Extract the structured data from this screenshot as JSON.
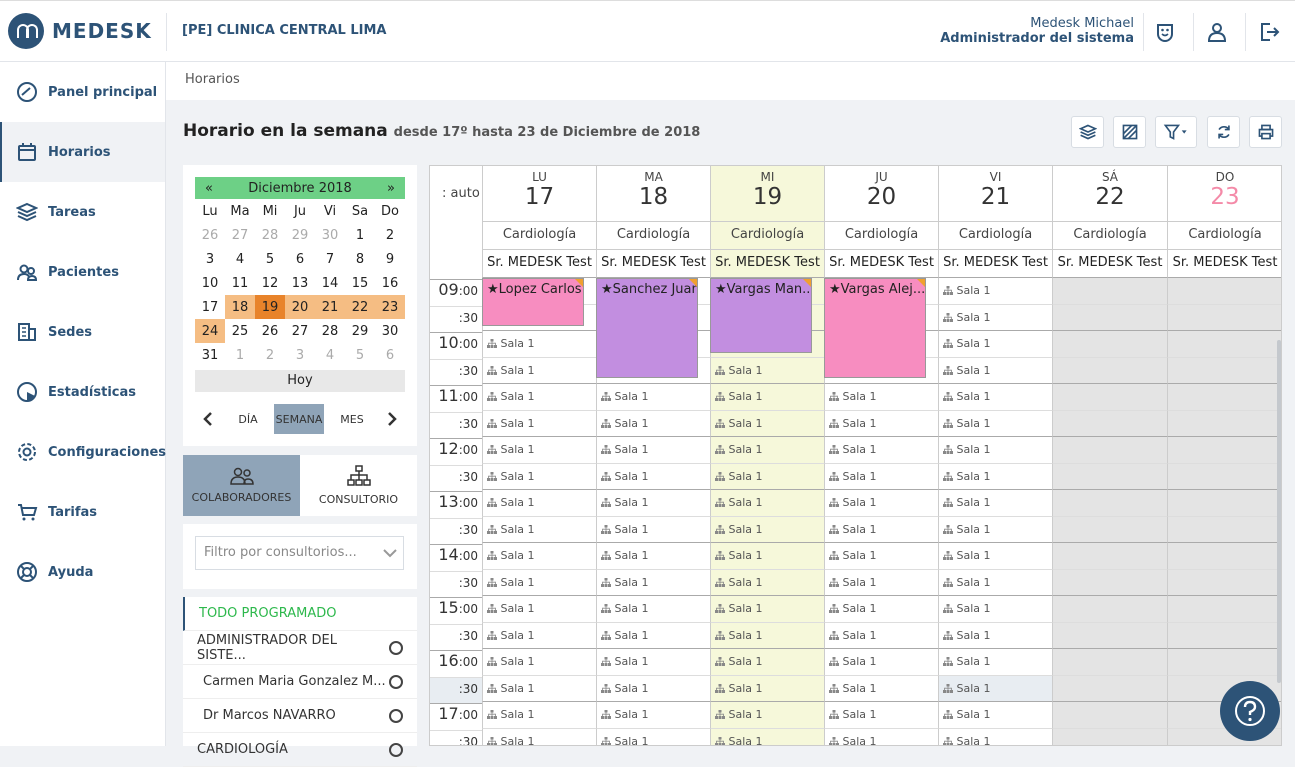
{
  "header": {
    "logo": "MEDESK",
    "clinic": "[PE] CLINICA CENTRAL LIMA",
    "user_name": "Medesk Michael",
    "user_role": "Administrador del sistema"
  },
  "sidebar": {
    "items": [
      {
        "label": "Panel principal",
        "icon": "dashboard-icon"
      },
      {
        "label": "Horarios",
        "icon": "calendar-icon"
      },
      {
        "label": "Tareas",
        "icon": "layers-icon"
      },
      {
        "label": "Pacientes",
        "icon": "people-icon"
      },
      {
        "label": "Sedes",
        "icon": "building-icon"
      },
      {
        "label": "Estadísticas",
        "icon": "pie-icon"
      },
      {
        "label": "Configuraciones",
        "icon": "gear-icon"
      },
      {
        "label": "Tarifas",
        "icon": "cart-icon"
      },
      {
        "label": "Ayuda",
        "icon": "lifebuoy-icon"
      }
    ]
  },
  "breadcrumb": "Horarios",
  "page": {
    "title": "Horario en la semana",
    "subtitle": "desde 17º hasta 23 de Diciembre de 2018"
  },
  "calendar": {
    "prev": "«",
    "month": "Diciembre 2018",
    "next": "»",
    "weekdays": [
      "Lu",
      "Ma",
      "Mi",
      "Ju",
      "Vi",
      "Sa",
      "Do"
    ],
    "weeks": [
      [
        "26",
        "27",
        "28",
        "29",
        "30",
        "1",
        "2"
      ],
      [
        "3",
        "4",
        "5",
        "6",
        "7",
        "8",
        "9"
      ],
      [
        "10",
        "11",
        "12",
        "13",
        "14",
        "15",
        "16"
      ],
      [
        "17",
        "18",
        "19",
        "20",
        "21",
        "22",
        "23"
      ],
      [
        "24",
        "25",
        "26",
        "27",
        "28",
        "29",
        "30"
      ],
      [
        "31",
        "1",
        "2",
        "3",
        "4",
        "5",
        "6"
      ]
    ],
    "today_label": "Hoy",
    "views": [
      "DÍA",
      "SEMANA",
      "MES"
    ]
  },
  "tabs": [
    "COLABORADORES",
    "CONSULTORIO"
  ],
  "filter_placeholder": "Filtro por consultorios...",
  "people": [
    "TODO PROGRAMADO",
    "ADMINISTRADOR DEL SISTE...",
    "Carmen Maria Gonzalez M...",
    "Dr Marcos NAVARRO",
    "CARDIOLOGÍA"
  ],
  "schedule": {
    "corner": ": auto",
    "days": [
      {
        "name": "LU",
        "num": "17",
        "specialty": "Cardiología",
        "doctor": "Sr. MEDESK Test"
      },
      {
        "name": "MA",
        "num": "18",
        "specialty": "Cardiología",
        "doctor": "Sr. MEDESK Test"
      },
      {
        "name": "MI",
        "num": "19",
        "specialty": "Cardiología",
        "doctor": "Sr. MEDESK Test"
      },
      {
        "name": "JU",
        "num": "20",
        "specialty": "Cardiología",
        "doctor": "Sr. MEDESK Test"
      },
      {
        "name": "VI",
        "num": "21",
        "specialty": "Cardiología",
        "doctor": "Sr. MEDESK Test"
      },
      {
        "name": "SÁ",
        "num": "22",
        "specialty": "Cardiología",
        "doctor": "Sr. MEDESK Test"
      },
      {
        "name": "DO",
        "num": "23",
        "specialty": "Cardiología",
        "doctor": "Sr. MEDESK Test"
      }
    ],
    "room": "Sala 1",
    "hours": [
      "09",
      "10",
      "11",
      "12",
      "13",
      "14",
      "15",
      "16",
      "17"
    ],
    "appointments": [
      {
        "label": "Lopez Carlos",
        "color": "#f78dc0"
      },
      {
        "label": "Sanchez Juan",
        "color": "#c28ee0"
      },
      {
        "label": "Vargas Man...",
        "color": "#c28ee0"
      },
      {
        "label": "Vargas Alej...",
        "color": "#f78dc0"
      }
    ]
  },
  "colors": {
    "accent": "#2d5377",
    "today_column": "#f6f8da",
    "weekend_gray": "#e4e4e4",
    "sunday_red": "#f48aa8"
  }
}
